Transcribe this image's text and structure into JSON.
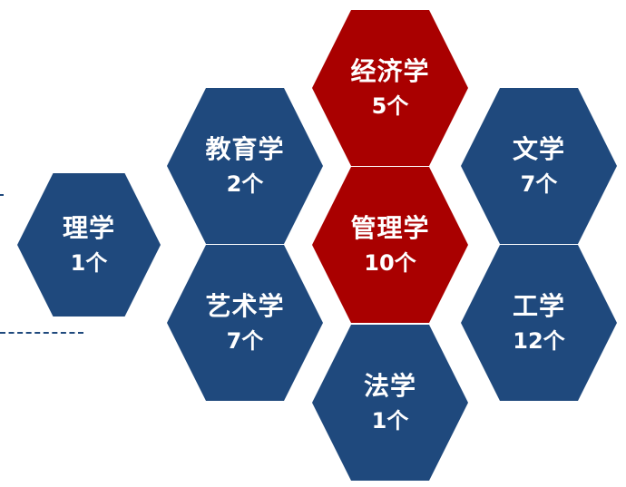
{
  "colors": {
    "blue": "#1f497d",
    "red": "#a90000",
    "text": "#ffffff"
  },
  "cells": [
    {
      "id": "lixue",
      "name": "理学",
      "count": "1个",
      "color": "blue"
    },
    {
      "id": "jiaoyuxue",
      "name": "教育学",
      "count": "2个",
      "color": "blue"
    },
    {
      "id": "yishuxue",
      "name": "艺术学",
      "count": "7个",
      "color": "blue"
    },
    {
      "id": "jingjixue",
      "name": "经济学",
      "count": "5个",
      "color": "red"
    },
    {
      "id": "guanlixue",
      "name": "管理学",
      "count": "10个",
      "color": "red"
    },
    {
      "id": "faxue",
      "name": "法学",
      "count": "1个",
      "color": "blue"
    },
    {
      "id": "wenxue",
      "name": "文学",
      "count": "7个",
      "color": "blue"
    },
    {
      "id": "gongxue",
      "name": "工学",
      "count": "12个",
      "color": "blue"
    }
  ]
}
